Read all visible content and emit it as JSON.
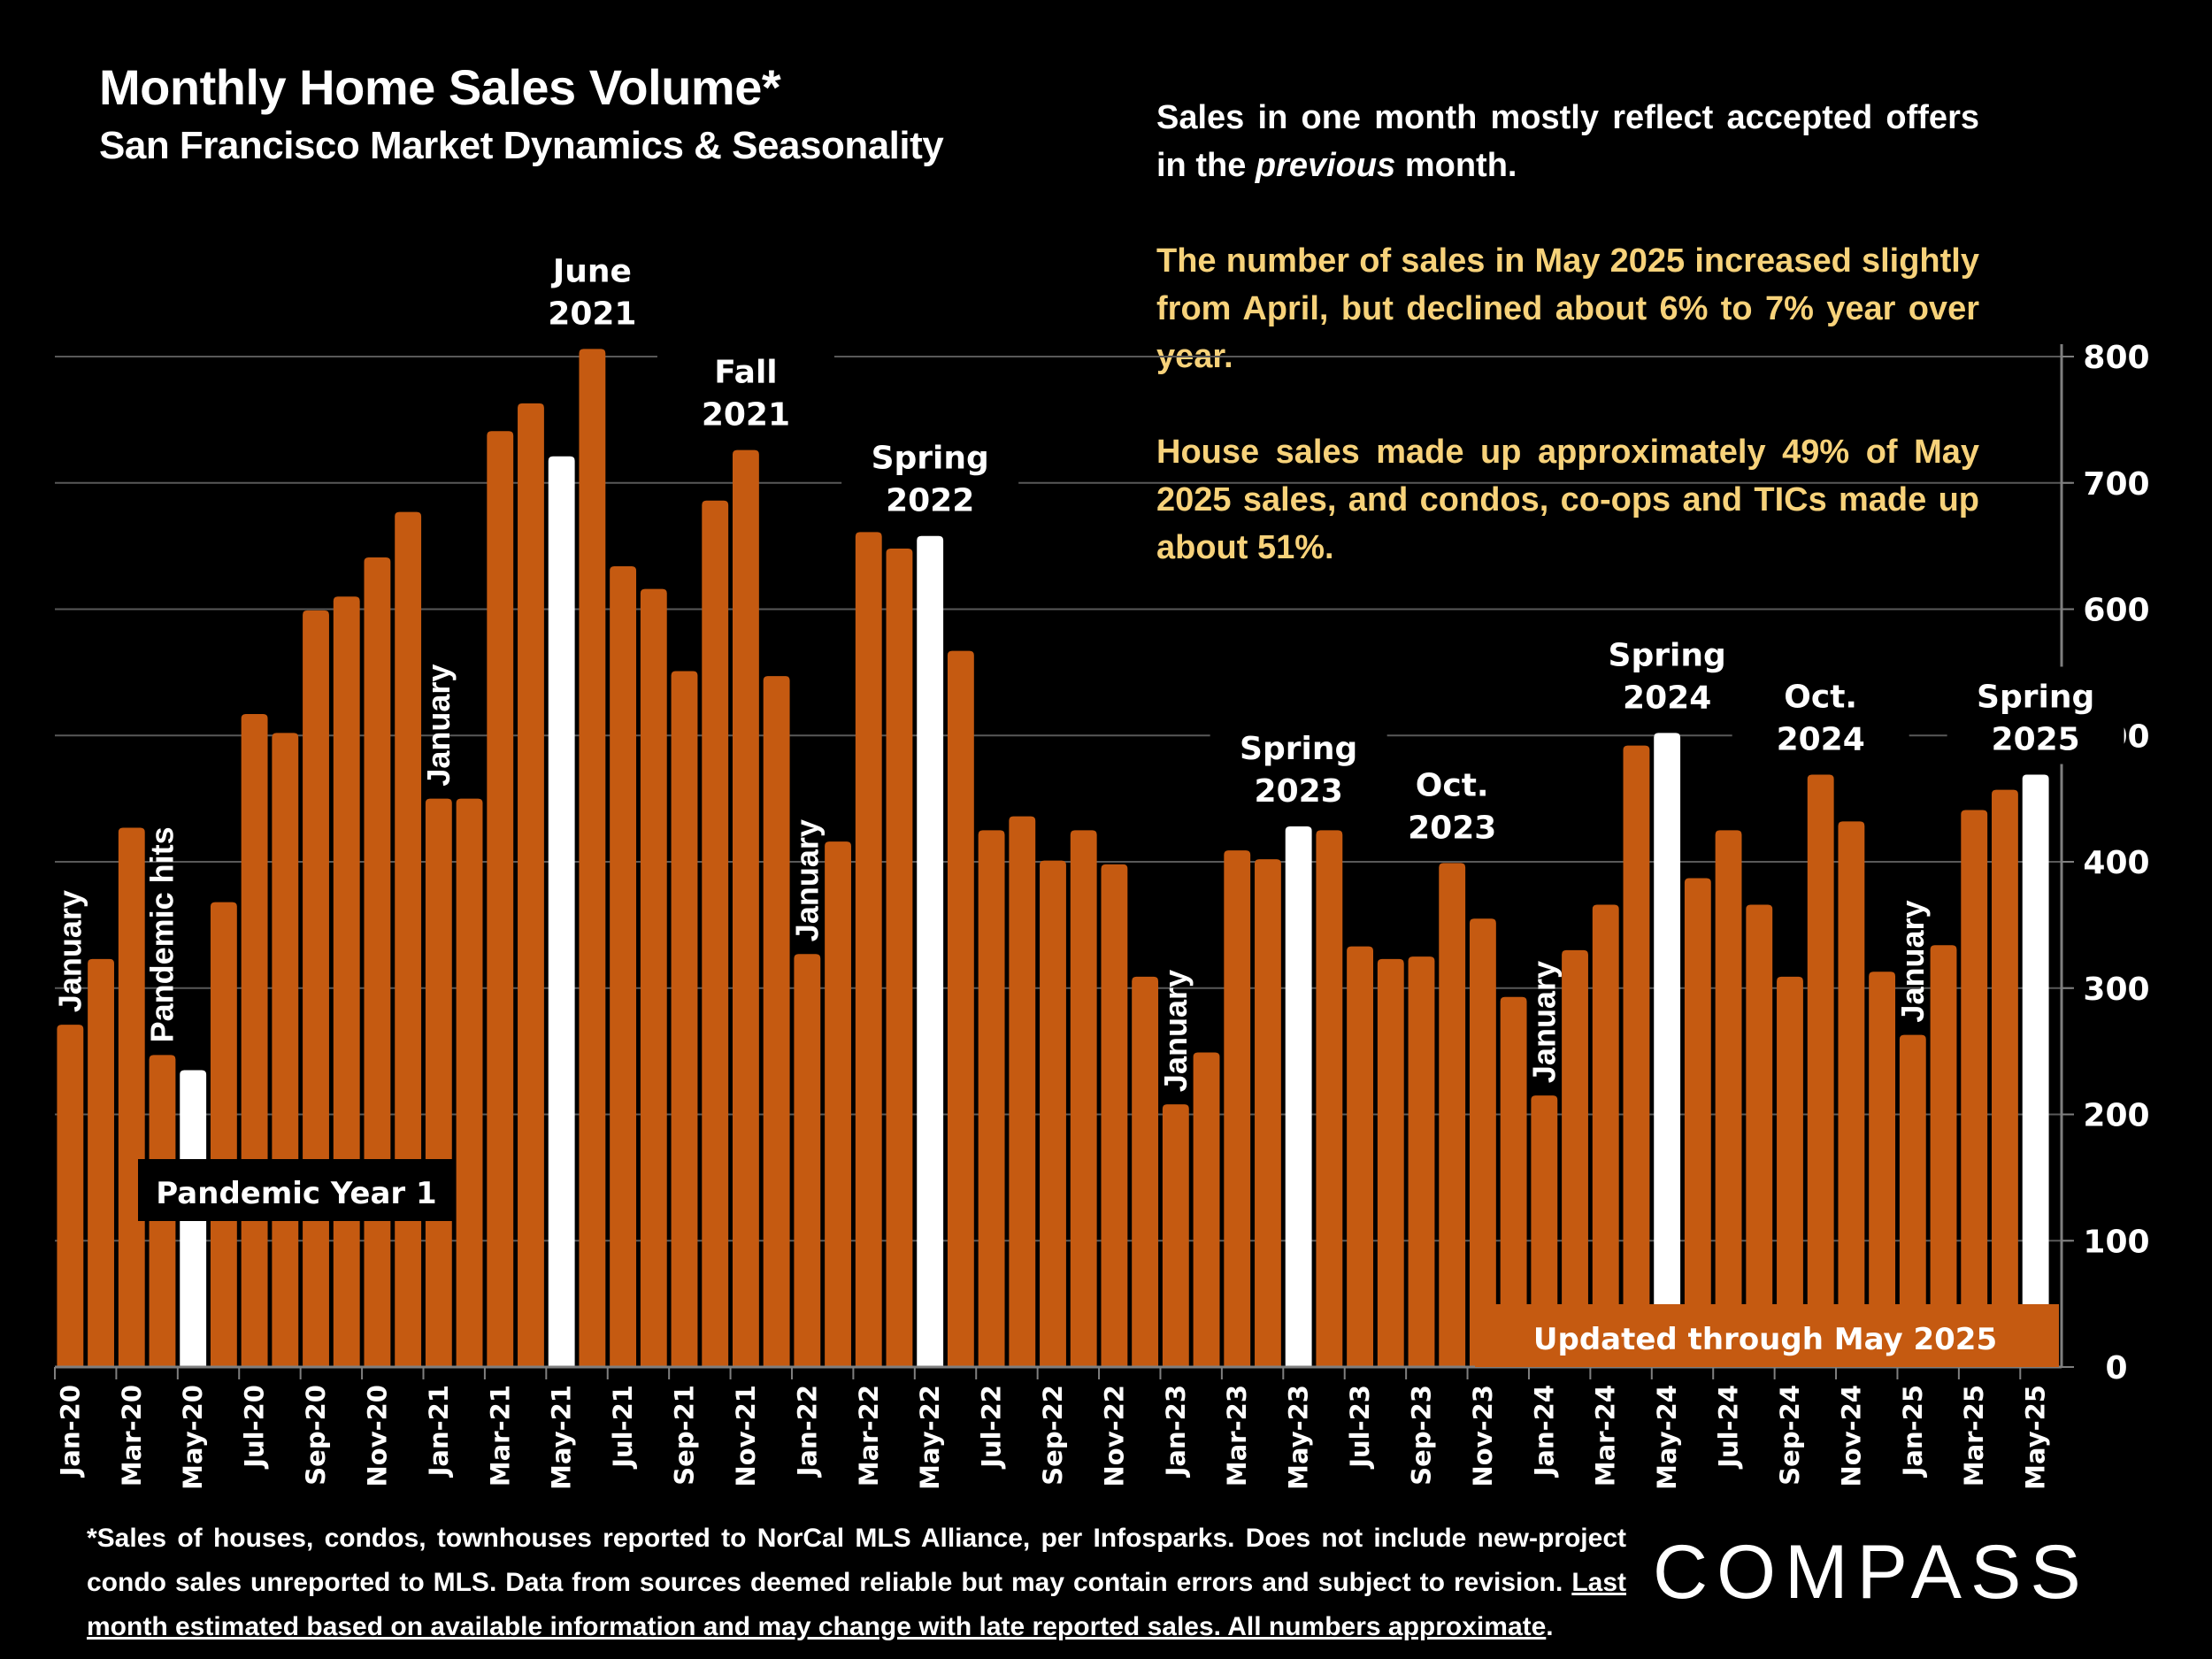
{
  "header": {
    "title": "Monthly Home Sales Volume*",
    "subtitle": "San Francisco Market Dynamics & Seasonality"
  },
  "notes": {
    "line1_pre": "Sales in one month mostly reflect accepted offers in the ",
    "line1_italic": "previous",
    "line1_post": " month.",
    "para2": "The number of sales in May 2025 increased slightly from April, but declined about 6% to 7% year over year.",
    "para3": "House sales made up approximately 49% of May 2025 sales, and condos, co-ops and TICs made up about 51%."
  },
  "footer": {
    "text": "*Sales of houses, condos, townhouses reported to NorCal MLS Alliance, per Infosparks. Does not include new-project condo sales unreported to MLS. Data from sources deemed reliable but may contain errors and subject to revision. ",
    "underlined": "Last month estimated based on available information and may change with late reported sales. All numbers approximate",
    "end": "."
  },
  "logo": {
    "text": "COMPASS"
  },
  "colors": {
    "bar": "#c55a11",
    "highlight": "#ffffff",
    "background": "#000000",
    "gold_text": "#f7d27a",
    "grid": "#595959"
  },
  "chart_data": {
    "type": "bar",
    "title": "Monthly Home Sales Volume*",
    "subtitle": "San Francisco Market Dynamics & Seasonality",
    "xlabel": "",
    "ylabel": "",
    "ylim": [
      0,
      800
    ],
    "yticks": [
      0,
      100,
      200,
      300,
      400,
      500,
      600,
      700,
      800
    ],
    "y_axis_side": "right",
    "grid": true,
    "categories": [
      "Jan-20",
      "Feb-20",
      "Mar-20",
      "Apr-20",
      "May-20",
      "Jun-20",
      "Jul-20",
      "Aug-20",
      "Sep-20",
      "Oct-20",
      "Nov-20",
      "Dec-20",
      "Jan-21",
      "Feb-21",
      "Mar-21",
      "Apr-21",
      "May-21",
      "Jun-21",
      "Jul-21",
      "Aug-21",
      "Sep-21",
      "Oct-21",
      "Nov-21",
      "Dec-21",
      "Jan-22",
      "Feb-22",
      "Mar-22",
      "Apr-22",
      "May-22",
      "Jun-22",
      "Jul-22",
      "Aug-22",
      "Sep-22",
      "Oct-22",
      "Nov-22",
      "Dec-22",
      "Jan-23",
      "Feb-23",
      "Mar-23",
      "Apr-23",
      "May-23",
      "Jun-23",
      "Jul-23",
      "Aug-23",
      "Sep-23",
      "Oct-23",
      "Nov-23",
      "Dec-23",
      "Jan-24",
      "Feb-24",
      "Mar-24",
      "Apr-24",
      "May-24",
      "Jun-24",
      "Jul-24",
      "Aug-24",
      "Sep-24",
      "Oct-24",
      "Nov-24",
      "Dec-24",
      "Jan-25",
      "Feb-25",
      "Mar-25",
      "Apr-25",
      "May-25"
    ],
    "tick_labels_shown": [
      "Jan-20",
      "Mar-20",
      "May-20",
      "Jul-20",
      "Sep-20",
      "Nov-20",
      "Jan-21",
      "Mar-21",
      "May-21",
      "Jul-21",
      "Sep-21",
      "Nov-21",
      "Jan-22",
      "Mar-22",
      "May-22",
      "Jul-22",
      "Sep-22",
      "Nov-22",
      "Jan-23",
      "Mar-23",
      "May-23",
      "Jul-23",
      "Sep-23",
      "Nov-23",
      "Jan-24",
      "Mar-24",
      "May-24",
      "Jul-24",
      "Sep-24",
      "Nov-24",
      "Jan-25",
      "Mar-25",
      "May-25"
    ],
    "values": [
      271,
      323,
      427,
      247,
      235,
      368,
      517,
      502,
      599,
      610,
      641,
      677,
      450,
      450,
      741,
      763,
      721,
      806,
      634,
      616,
      551,
      686,
      726,
      547,
      327,
      416,
      661,
      648,
      658,
      567,
      425,
      436,
      401,
      425,
      398,
      309,
      208,
      249,
      409,
      402,
      428,
      425,
      333,
      323,
      325,
      399,
      355,
      293,
      215,
      330,
      366,
      492,
      502,
      387,
      425,
      366,
      309,
      469,
      432,
      313,
      263,
      334,
      441,
      457,
      469
    ],
    "highlighted": [
      "May-20",
      "May-21",
      "May-22",
      "May-23",
      "May-24",
      "May-25"
    ],
    "annotations": [
      {
        "text": "January",
        "at": "Jan-20",
        "rotated": true
      },
      {
        "text": "Pandemic hits",
        "at": "Apr-20",
        "rotated": true
      },
      {
        "text": "January",
        "at": "Jan-21",
        "rotated": true
      },
      {
        "text": "June 2021",
        "at": "Jun-21",
        "rotated": false
      },
      {
        "text": "Fall 2021",
        "at": "Nov-21",
        "rotated": false
      },
      {
        "text": "January",
        "at": "Jan-22",
        "rotated": true
      },
      {
        "text": "Spring 2022",
        "at": "May-22",
        "rotated": false
      },
      {
        "text": "January",
        "at": "Jan-23",
        "rotated": true
      },
      {
        "text": "Spring 2023",
        "at": "May-23",
        "rotated": false
      },
      {
        "text": "Oct. 2023",
        "at": "Oct-23",
        "rotated": false
      },
      {
        "text": "January",
        "at": "Jan-24",
        "rotated": true
      },
      {
        "text": "Spring 2024",
        "at": "May-24",
        "rotated": false
      },
      {
        "text": "Oct. 2024",
        "at": "Oct-24",
        "rotated": false
      },
      {
        "text": "January",
        "at": "Jan-25",
        "rotated": true
      },
      {
        "text": "Spring 2025",
        "at": "May-25",
        "rotated": false
      }
    ],
    "boxes": [
      {
        "text": "Pandemic Year 1",
        "style": "black-box"
      },
      {
        "text": "Updated through May 2025",
        "style": "orange-box"
      }
    ]
  }
}
